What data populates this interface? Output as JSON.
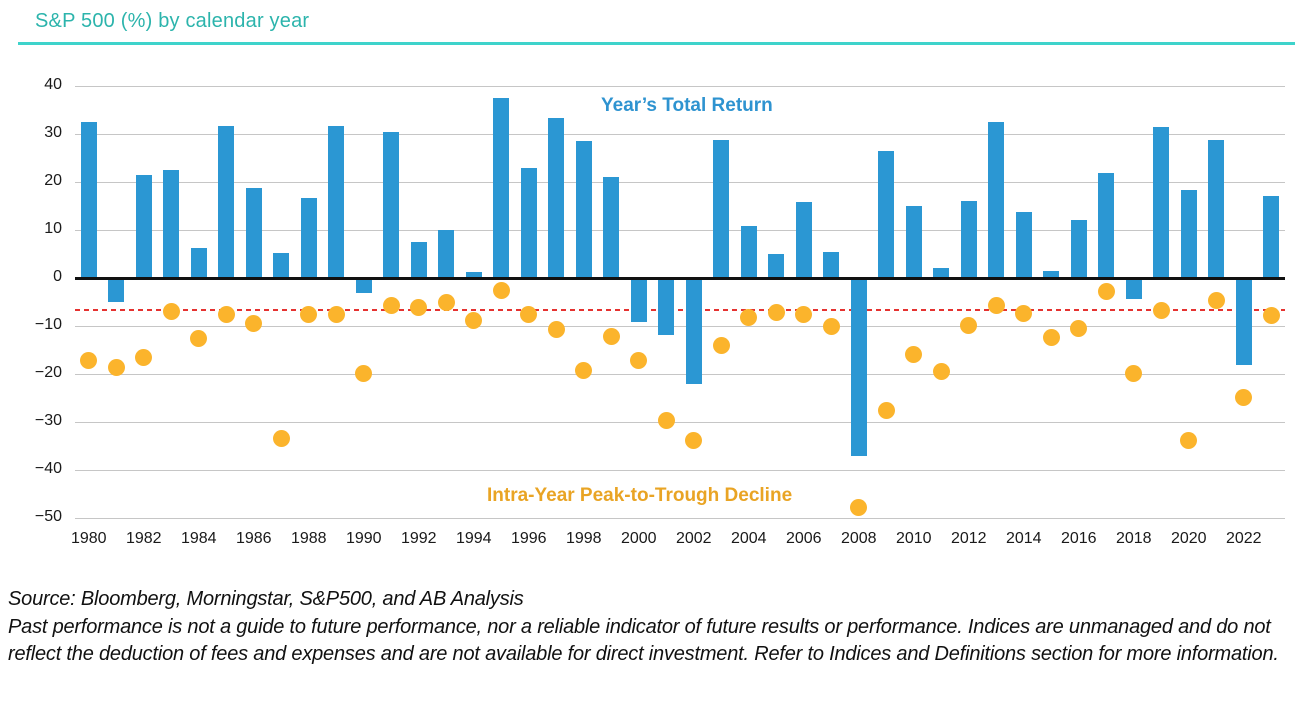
{
  "page": {
    "title": "S&P 500 (%) by calendar year",
    "accent_teal": "#2CB4AC",
    "underline_color": "#3ED3CB"
  },
  "chart_data": {
    "type": "bar",
    "title": "S&P 500 (%) by calendar year",
    "categories": [
      1980,
      1981,
      1982,
      1983,
      1984,
      1985,
      1986,
      1987,
      1988,
      1989,
      1990,
      1991,
      1992,
      1993,
      1994,
      1995,
      1996,
      1997,
      1998,
      1999,
      2000,
      2001,
      2002,
      2003,
      2004,
      2005,
      2006,
      2007,
      2008,
      2009,
      2010,
      2011,
      2012,
      2013,
      2014,
      2015,
      2016,
      2017,
      2018,
      2019,
      2020,
      2021,
      2022,
      2023
    ],
    "series": [
      {
        "name": "Year’s Total Return",
        "type": "bar",
        "color": "#2B97D3",
        "values": [
          32.4,
          -4.9,
          21.5,
          22.6,
          6.3,
          31.7,
          18.7,
          5.3,
          16.6,
          31.7,
          -3.1,
          30.5,
          7.6,
          10.1,
          1.3,
          37.6,
          23.0,
          33.4,
          28.6,
          21.0,
          -9.1,
          -11.9,
          -22.1,
          28.7,
          10.9,
          4.9,
          15.8,
          5.5,
          -37.0,
          26.5,
          15.1,
          2.1,
          16.0,
          32.4,
          13.7,
          1.4,
          12.0,
          21.8,
          -4.4,
          31.5,
          18.4,
          28.7,
          -18.1,
          17.0
        ]
      },
      {
        "name": "Intra-Year Peak-to-Trough Decline",
        "type": "scatter",
        "color": "#FBB42C",
        "values": [
          -17.1,
          -18.6,
          -16.5,
          -6.9,
          -12.7,
          -7.7,
          -9.4,
          -33.5,
          -7.6,
          -7.6,
          -19.9,
          -5.7,
          -6.2,
          -5.0,
          -8.9,
          -2.5,
          -7.6,
          -10.8,
          -19.3,
          -12.1,
          -17.2,
          -29.7,
          -33.8,
          -14.1,
          -8.2,
          -7.2,
          -7.7,
          -10.1,
          -47.9,
          -27.6,
          -16.0,
          -19.4,
          -9.9,
          -5.8,
          -7.4,
          -12.4,
          -10.5,
          -2.8,
          -19.8,
          -6.8,
          -33.9,
          -4.7,
          -24.8,
          -7.8
        ]
      }
    ],
    "ylim": [
      -50,
      40
    ],
    "grid": true,
    "yticks": [
      {
        "value": 40,
        "label": "40"
      },
      {
        "value": 30,
        "label": "30"
      },
      {
        "value": 20,
        "label": "20"
      },
      {
        "value": 10,
        "label": "10"
      },
      {
        "value": 0,
        "label": "0"
      },
      {
        "value": -10,
        "label": "−10"
      },
      {
        "value": -20,
        "label": "−20"
      },
      {
        "value": -30,
        "label": "−30"
      },
      {
        "value": -40,
        "label": "−40"
      },
      {
        "value": -50,
        "label": "−50"
      }
    ],
    "xtick_labels": [
      "1980",
      "1982",
      "1984",
      "1986",
      "1988",
      "1990",
      "1992",
      "1994",
      "1996",
      "1998",
      "2000",
      "2002",
      "2004",
      "2006",
      "2008",
      "2010",
      "2012",
      "2014",
      "2016",
      "2018",
      "2020",
      "2022"
    ],
    "reference_line": {
      "value": -6.5,
      "style": "dashed",
      "color": "#E53230"
    },
    "colors": {
      "grid": "#C6C6C6",
      "zero_line": "#111111",
      "tick_text": "#1A1A1A"
    },
    "legend_position": "inside-plot"
  },
  "footer": {
    "source": "Source: Bloomberg, Morningstar, S&P500, and AB Analysis",
    "disclaimer": "Past performance is not a guide to future performance, nor a reliable indicator of future results or performance. Indices are unmanaged and do not reflect the deduction of fees and expenses and are not available for direct investment. Refer to Indices and Definitions section for more information."
  }
}
